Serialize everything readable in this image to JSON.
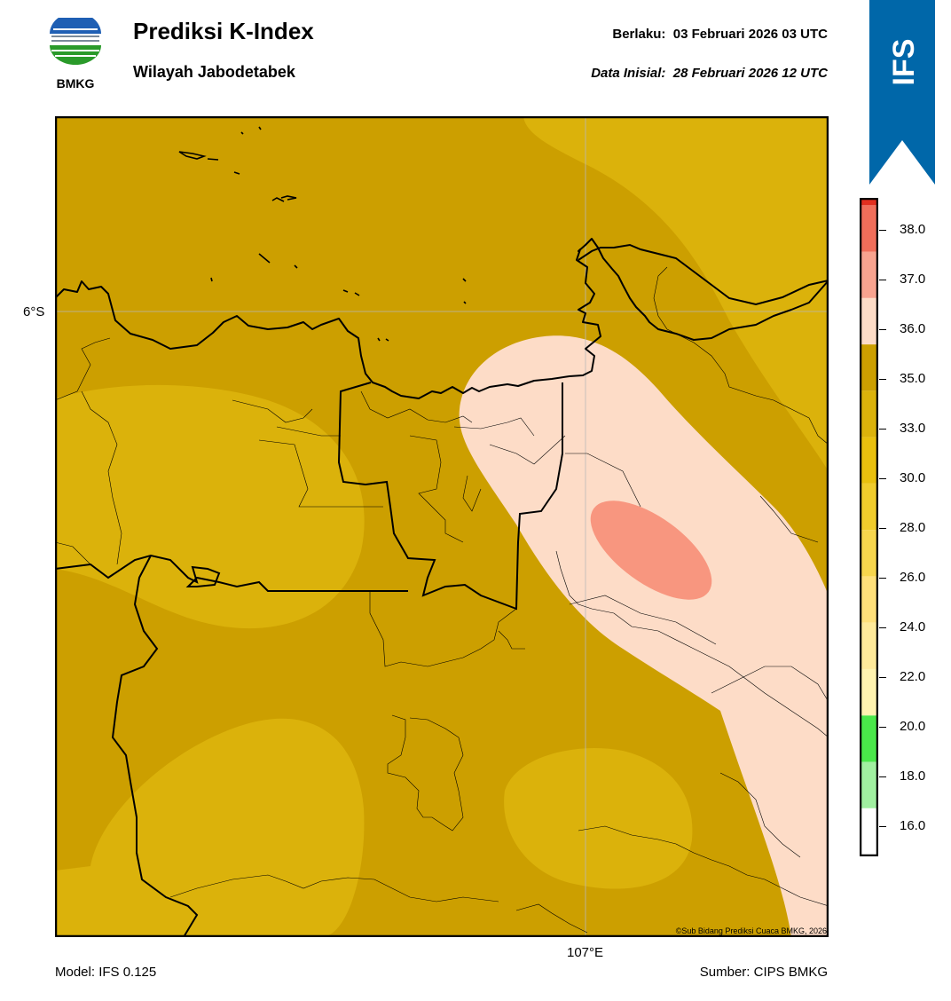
{
  "header": {
    "logo_text": "BMKG",
    "title": "Prediksi K-Index",
    "subtitle": "Wilayah Jabodetabek",
    "valid_label": "Berlaku:",
    "valid_value": "03 Februari 2026 03 UTC",
    "init_label": "Data Inisial:",
    "init_value": "28 Februari 2026 12 UTC"
  },
  "badge": {
    "text": "IFS",
    "color": "#0067a9"
  },
  "map": {
    "lat_label": "6°S",
    "lon_label": "107°E",
    "copyright": "©Sub Bidang Prediksi Cuaca BMKG, 2026",
    "background_color": "#cc9f00",
    "region_colors": {
      "k_30_33": "#dbb20b",
      "k_35_36": "#fddcc7",
      "k_36_37": "#f8967f"
    }
  },
  "footer": {
    "model": "Model: IFS 0.125",
    "source": "Sumber: CIPS BMKG"
  },
  "colorbar": {
    "ticks": [
      "16.0",
      "18.0",
      "20.0",
      "22.0",
      "24.0",
      "26.0",
      "28.0",
      "30.0",
      "33.0",
      "35.0",
      "36.0",
      "37.0",
      "38.0"
    ],
    "bands_bottom_to_top": [
      "#ffffff",
      "#a0f0a0",
      "#4ae84a",
      "#fff3b0",
      "#ffea9a",
      "#ffe07a",
      "#f7d64d",
      "#f0cc2c",
      "#e9c00e",
      "#dbb20b",
      "#cc9f00",
      "#fddcc7",
      "#f8a38f",
      "#f06e5a",
      "#e22f1f"
    ]
  }
}
